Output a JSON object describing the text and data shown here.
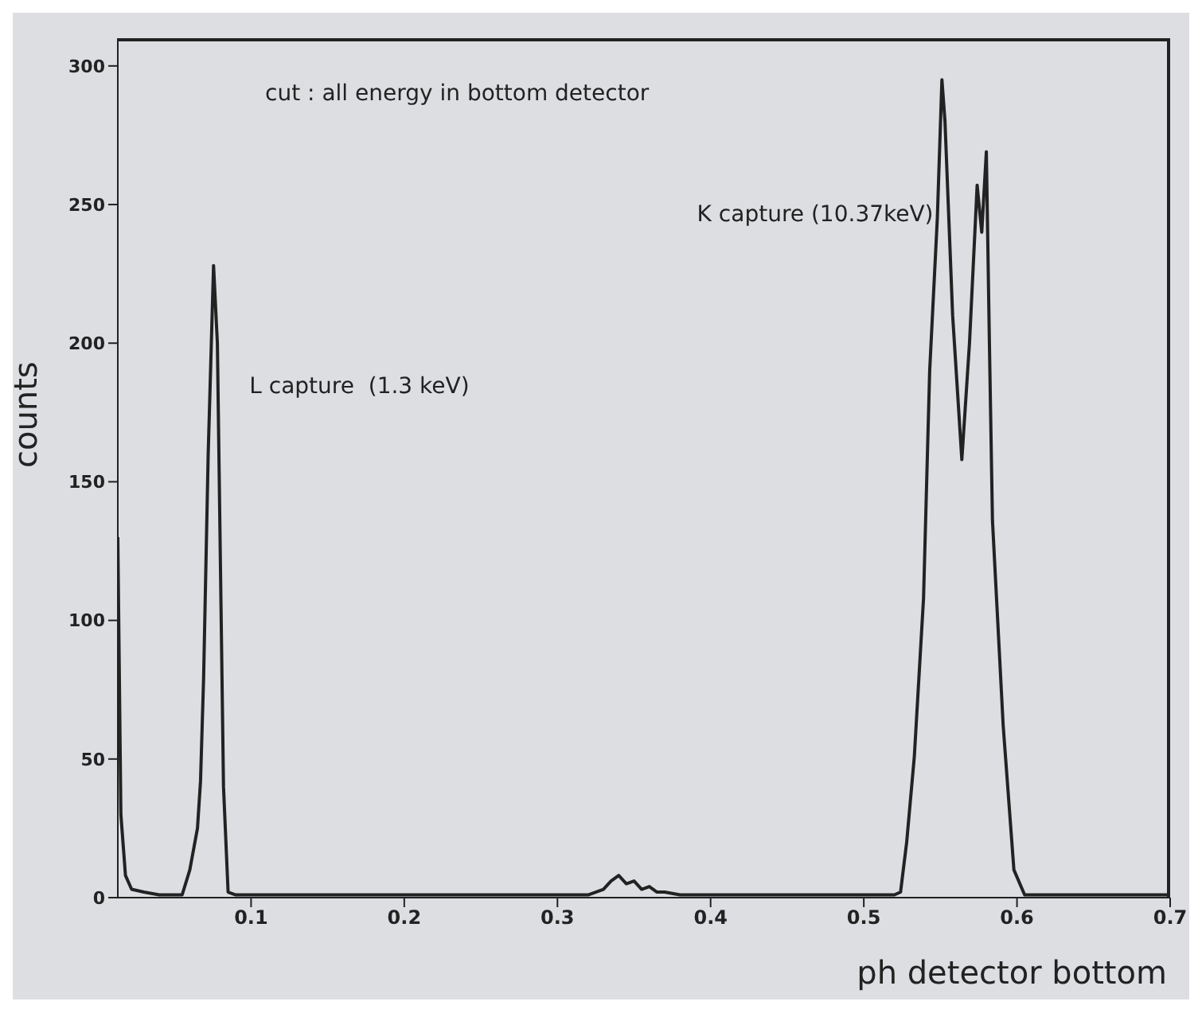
{
  "chart_data": {
    "type": "line",
    "xlabel": "ph detector bottom",
    "ylabel": "counts",
    "annotations": [
      "cut : all energy in bottom detector",
      "L capture  (1.3 keV)",
      "K capture (10.37keV)"
    ],
    "x": [
      0.013,
      0.015,
      0.018,
      0.022,
      0.03,
      0.04,
      0.05,
      0.055,
      0.06,
      0.065,
      0.067,
      0.069,
      0.072,
      0.0755,
      0.078,
      0.08,
      0.082,
      0.085,
      0.09,
      0.1,
      0.15,
      0.2,
      0.25,
      0.3,
      0.32,
      0.33,
      0.335,
      0.34,
      0.345,
      0.35,
      0.355,
      0.36,
      0.365,
      0.37,
      0.38,
      0.4,
      0.45,
      0.5,
      0.52,
      0.524,
      0.528,
      0.533,
      0.539,
      0.543,
      0.548,
      0.551,
      0.553,
      0.558,
      0.564,
      0.569,
      0.574,
      0.577,
      0.58,
      0.582,
      0.584,
      0.591,
      0.598,
      0.605,
      0.62,
      0.65,
      0.7
    ],
    "series": [
      {
        "color": "#222222",
        "values": [
          130,
          30,
          8,
          3,
          2,
          1,
          1,
          1,
          10,
          25,
          42,
          79,
          160,
          228,
          200,
          120,
          40,
          2,
          1,
          1,
          1,
          1,
          1,
          1,
          1,
          3,
          6,
          8,
          5,
          6,
          3,
          4,
          2,
          2,
          1,
          1,
          1,
          1,
          1,
          2,
          20,
          51,
          108,
          190,
          245,
          295,
          280,
          210,
          158,
          200,
          257,
          240,
          269,
          200,
          136,
          62,
          10,
          1,
          1,
          1,
          1
        ]
      }
    ],
    "xlim": [
      0.013,
      0.7
    ],
    "xticks": [
      0.1,
      0.2,
      0.3,
      0.4,
      0.5,
      0.6,
      0.7
    ],
    "ylim": [
      0,
      310
    ],
    "yticks": [
      0,
      50,
      100,
      150,
      200,
      250,
      300
    ],
    "marker": "none",
    "line_style": "solid",
    "legend": false,
    "grid": false
  }
}
